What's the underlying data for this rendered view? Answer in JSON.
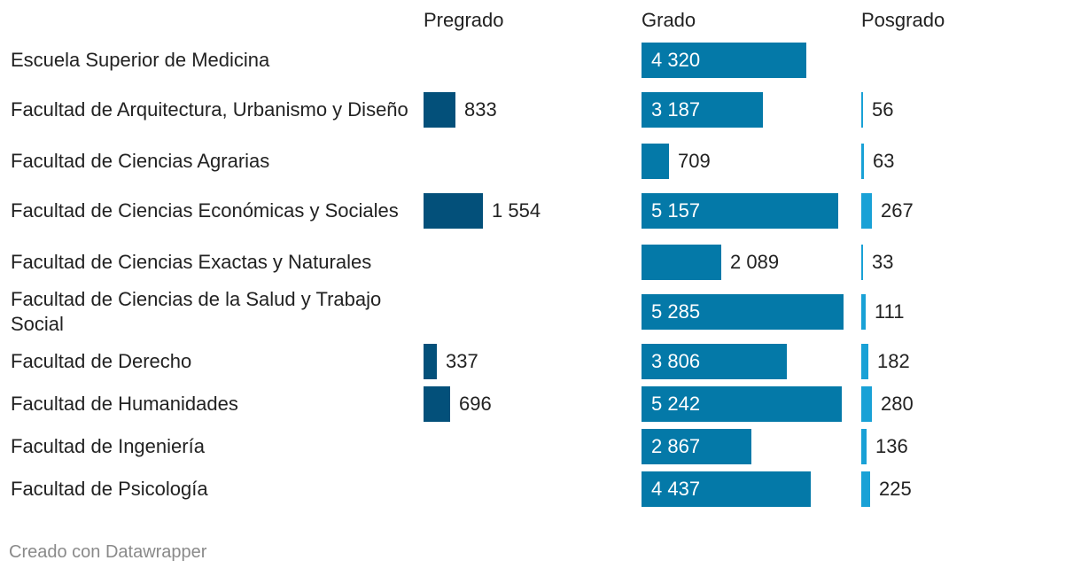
{
  "chart_data": {
    "type": "bar",
    "orientation": "horizontal",
    "columns": [
      "Pregrado",
      "Grado",
      "Posgrado"
    ],
    "categories": [
      "Escuela Superior de Medicina",
      "Facultad de Arquitectura, Urbanismo y Diseño",
      "Facultad de Ciencias Agrarias",
      "Facultad de Ciencias Económicas y Sociales",
      "Facultad de Ciencias Exactas y Naturales",
      "Facultad de Ciencias de la Salud y Trabajo Social",
      "Facultad de Derecho",
      "Facultad de Humanidades",
      "Facultad de Ingeniería",
      "Facultad de Psicología"
    ],
    "series": [
      {
        "name": "Pregrado",
        "color": "#03507a",
        "max": 5285,
        "values": [
          null,
          833,
          null,
          1554,
          null,
          null,
          337,
          696,
          null,
          null
        ],
        "labels": [
          "",
          "833",
          "",
          "1 554",
          "",
          "",
          "337",
          "696",
          "",
          ""
        ]
      },
      {
        "name": "Grado",
        "color": "#0479a8",
        "max": 5285,
        "values": [
          4320,
          3187,
          709,
          5157,
          2089,
          5285,
          3806,
          5242,
          2867,
          4437
        ],
        "labels": [
          "4 320",
          "3 187",
          "709",
          "5 157",
          "2 089",
          "5 285",
          "3 806",
          "5 242",
          "2 867",
          "4 437"
        ]
      },
      {
        "name": "Posgrado",
        "color": "#19a1d6",
        "max": 5285,
        "values": [
          null,
          56,
          63,
          267,
          33,
          111,
          182,
          280,
          136,
          225
        ],
        "labels": [
          "",
          "56",
          "63",
          "267",
          "33",
          "111",
          "182",
          "280",
          "136",
          "225"
        ]
      }
    ],
    "footer": "Creado con Datawrapper"
  }
}
